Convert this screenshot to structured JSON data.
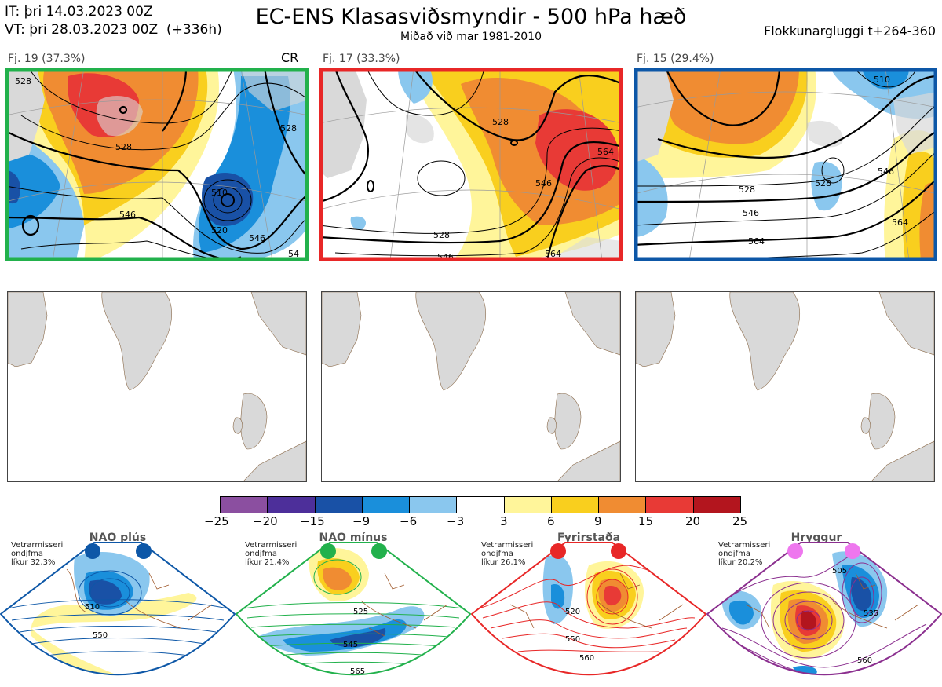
{
  "header": {
    "init_time": "IT: þri 14.03.2023 00Z",
    "valid_time": "VT: þri 28.03.2023 00Z  (+336h)",
    "title": "EC-ENS Klasasviðsmyndir - 500 hPa hæð",
    "subtitle": "Miðað við mar 1981-2010",
    "window": "Flokkunargluggi t+264-360"
  },
  "clusters": [
    {
      "label": "Fj. 19 (37.3%)",
      "tag": "CR",
      "frame_color": "#22b14c",
      "contour_labels": [
        "528",
        "528",
        "510",
        "520",
        "546",
        "528",
        "546",
        "54"
      ]
    },
    {
      "label": "Fj. 17 (33.3%)",
      "tag": "",
      "frame_color": "#e82727",
      "contour_labels": [
        "528",
        "546",
        "564",
        "528",
        "546",
        "564"
      ]
    },
    {
      "label": "Fj. 15 (29.4%)",
      "tag": "",
      "frame_color": "#0d57a7",
      "contour_labels": [
        "510",
        "528",
        "528",
        "546",
        "564",
        "546",
        "564"
      ]
    }
  ],
  "colorbar": {
    "colors": [
      "#8b4fa0",
      "#4d2f9a",
      "#1951a6",
      "#1a8fdb",
      "#8ac7ee",
      "#ffffff",
      "#fff59a",
      "#f9cf1e",
      "#f08c32",
      "#e83a36",
      "#b3151e"
    ],
    "ticks": [
      "−25",
      "−20",
      "−15",
      "−9",
      "−6",
      "−3",
      "3",
      "6",
      "9",
      "15",
      "20",
      "25"
    ]
  },
  "patterns": [
    {
      "name": "NAO plús",
      "note": "Vetrarmisseri\nondjfma\nlíkur 32,3%",
      "color": "#0d57a7",
      "dot_color": "#0d57a7",
      "contour_labels": [
        "510",
        "550"
      ]
    },
    {
      "name": "NAO mínus",
      "note": "Vetrarmisseri\nondjfma\nlíkur 21,4%",
      "color": "#22b14c",
      "dot_color": "#22b14c",
      "contour_labels": [
        "525",
        "545",
        "565"
      ]
    },
    {
      "name": "Fyrirstaða",
      "note": "Vetrarmisseri\nondjfma\nlíkur 26,1%",
      "color": "#e82727",
      "dot_color": "#e82727",
      "contour_labels": [
        "520",
        "550",
        "560"
      ]
    },
    {
      "name": "Hryggur",
      "note": "Vetrarmisseri\nondjfma\nlíkur 20,2%",
      "color": "#8b2f8f",
      "dot_color": "#ee77ee",
      "contour_labels": [
        "505",
        "535",
        "560"
      ]
    }
  ]
}
